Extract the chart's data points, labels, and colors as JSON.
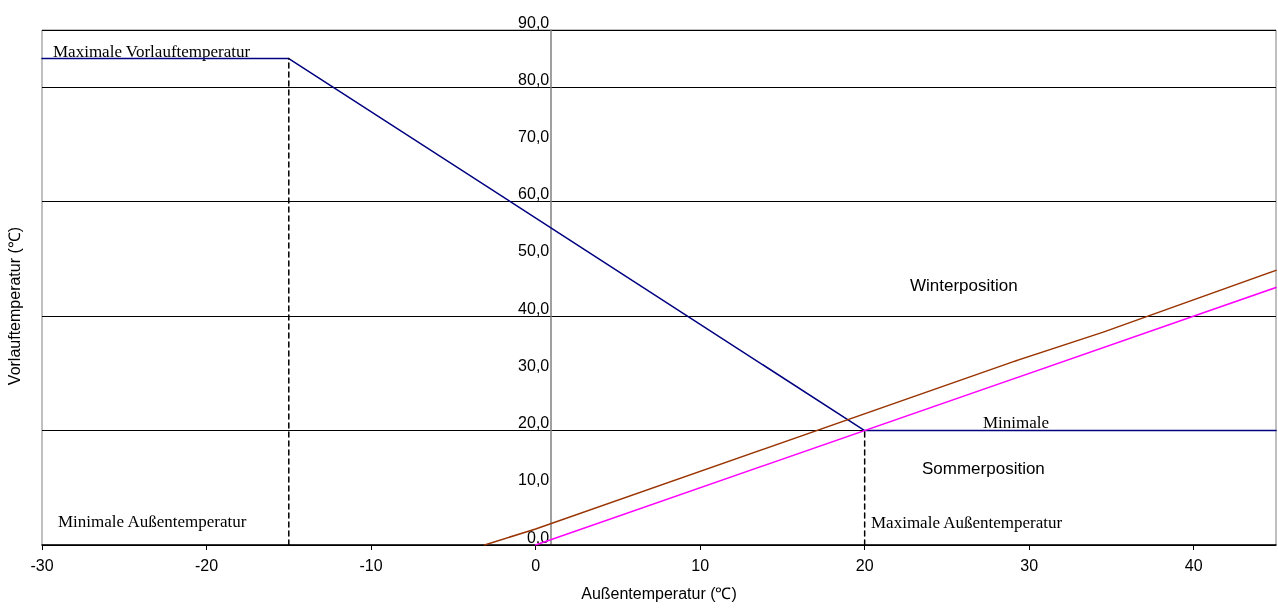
{
  "chart_data": {
    "type": "line",
    "xlabel": "Außentemperatur (℃)",
    "ylabel": "Vorlauftemperatur (℃)",
    "xlim": [
      -30,
      45
    ],
    "xticks": [
      -30,
      -20,
      -10,
      0,
      10,
      20,
      30,
      40
    ],
    "ylim": [
      0,
      90
    ],
    "yticks": [
      {
        "value": 0,
        "label": "0,0"
      },
      {
        "value": 10,
        "label": "10,0"
      },
      {
        "value": 20,
        "label": "20,0"
      },
      {
        "value": 30,
        "label": "30,0"
      },
      {
        "value": 40,
        "label": "40,0"
      },
      {
        "value": 50,
        "label": "50,0"
      },
      {
        "value": 60,
        "label": "60,0"
      },
      {
        "value": 70,
        "label": "70,0"
      },
      {
        "value": 80,
        "label": "80,0"
      },
      {
        "value": 90,
        "label": "90,0"
      }
    ],
    "grid": "y",
    "marker": "none",
    "series": [
      {
        "color": "#000080",
        "x": [
          -30,
          -15,
          20,
          45
        ],
        "values": [
          85,
          85,
          20,
          20
        ]
      },
      {
        "color": "#993300",
        "x": [
          -3.1,
          0,
          29,
          34.5,
          45
        ],
        "values": [
          0,
          2.8,
          32,
          37.2,
          48
        ]
      },
      {
        "color": "#ff00ff",
        "x": [
          0,
          45
        ],
        "values": [
          0,
          45
        ]
      },
      {
        "color": "#000000",
        "line_style": "dashed",
        "x": [
          -15,
          -15
        ],
        "values": [
          0,
          85
        ]
      },
      {
        "color": "#000000",
        "line_style": "dashed",
        "x": [
          20,
          20
        ],
        "values": [
          0,
          20
        ]
      }
    ],
    "annotations": [
      "Maximale Vorlauftemperatur",
      "Minimale Außentemperatur",
      "Maximale Außentemperatur",
      "Minimale",
      "Winterposition",
      "Sommerposition"
    ]
  }
}
